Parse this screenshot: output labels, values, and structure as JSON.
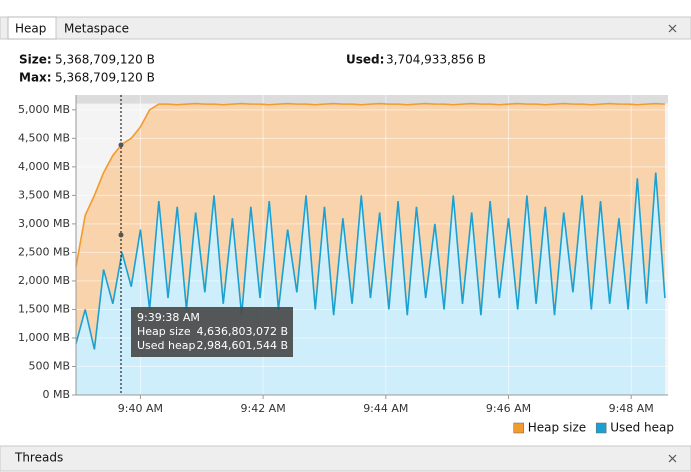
{
  "tabs": [
    "Heap",
    "Metaspace"
  ],
  "summary": {
    "size_label": "Size:",
    "size": "5,368,709,120 B",
    "max_label": "Max:",
    "max": "5,368,709,120 B",
    "used_label": "Used:",
    "used": "3,704,933,856 B"
  },
  "chart_data": {
    "type": "area",
    "x": [
      38.95,
      39.1,
      39.25,
      39.4,
      39.55,
      39.7,
      39.85,
      40,
      40.15,
      40.3,
      40.45,
      40.6,
      40.75,
      40.9,
      41.05,
      41.2,
      41.35,
      41.5,
      41.65,
      41.8,
      41.95,
      42.1,
      42.25,
      42.4,
      42.55,
      42.7,
      42.85,
      43,
      43.15,
      43.3,
      43.45,
      43.6,
      43.75,
      43.9,
      44.05,
      44.2,
      44.35,
      44.5,
      44.65,
      44.8,
      44.95,
      45.1,
      45.25,
      45.4,
      45.55,
      45.7,
      45.85,
      46,
      46.15,
      46.3,
      46.45,
      46.6,
      46.75,
      46.9,
      47.05,
      47.2,
      47.35,
      47.5,
      47.65,
      47.8,
      47.95,
      48.1,
      48.25,
      48.4,
      48.55
    ],
    "series": [
      {
        "name": "Heap size",
        "color": "#f29b2e",
        "fill": "#f9d3ac",
        "values": [
          2250,
          3150,
          3500,
          3900,
          4200,
          4400,
          4500,
          4700,
          5000,
          5100,
          5100,
          5090,
          5100,
          5110,
          5100,
          5100,
          5090,
          5100,
          5110,
          5100,
          5100,
          5090,
          5100,
          5110,
          5100,
          5100,
          5090,
          5100,
          5110,
          5100,
          5100,
          5090,
          5100,
          5110,
          5100,
          5100,
          5090,
          5100,
          5110,
          5100,
          5100,
          5090,
          5100,
          5110,
          5100,
          5100,
          5090,
          5100,
          5110,
          5100,
          5100,
          5090,
          5100,
          5110,
          5100,
          5100,
          5090,
          5100,
          5110,
          5100,
          5100,
          5090,
          5100,
          5110,
          5100
        ]
      },
      {
        "name": "Used heap",
        "color": "#1ba1d1",
        "fill": "#cdeefa",
        "values": [
          900,
          1500,
          800,
          2200,
          1600,
          2500,
          1900,
          2900,
          1500,
          3400,
          1700,
          3300,
          1500,
          3200,
          1800,
          3500,
          1600,
          3100,
          1400,
          3300,
          1700,
          3400,
          1500,
          2900,
          1800,
          3500,
          1500,
          3300,
          1400,
          3100,
          1600,
          3500,
          1700,
          3200,
          1500,
          3400,
          1400,
          3300,
          1700,
          3000,
          1500,
          3500,
          1600,
          3200,
          1400,
          3400,
          1700,
          3100,
          1500,
          3500,
          1600,
          3300,
          1400,
          3200,
          1800,
          3500,
          1500,
          3400,
          1600,
          3100,
          1500,
          3800,
          1600,
          3900,
          1700
        ]
      }
    ],
    "xlim": [
      38.95,
      48.6
    ],
    "xticks": [
      {
        "value": 40,
        "label": "9:40 AM"
      },
      {
        "value": 42,
        "label": "9:42 AM"
      },
      {
        "value": 44,
        "label": "9:44 AM"
      },
      {
        "value": 46,
        "label": "9:46 AM"
      },
      {
        "value": 48,
        "label": "9:48 AM"
      }
    ],
    "ylim": [
      0,
      5260
    ],
    "yticks": [
      {
        "value": 0,
        "label": "0 MB"
      },
      {
        "value": 500,
        "label": "500 MB"
      },
      {
        "value": 1000,
        "label": "1,000 MB"
      },
      {
        "value": 1500,
        "label": "1,500 MB"
      },
      {
        "value": 2000,
        "label": "2,000 MB"
      },
      {
        "value": 2500,
        "label": "2,500 MB"
      },
      {
        "value": 3000,
        "label": "3,000 MB"
      },
      {
        "value": 3500,
        "label": "3,500 MB"
      },
      {
        "value": 4000,
        "label": "4,000 MB"
      },
      {
        "value": 4500,
        "label": "4,500 MB"
      },
      {
        "value": 5000,
        "label": "5,000 MB"
      }
    ],
    "grid": true,
    "legend": "bottom-right"
  },
  "tooltip": {
    "time": "9:39:38 AM",
    "heap_label": "Heap size",
    "heap_value": "4,636,803,072 B",
    "used_label": "Used heap",
    "used_value": "2,984,601,544 B"
  },
  "threads_panel": "Threads"
}
